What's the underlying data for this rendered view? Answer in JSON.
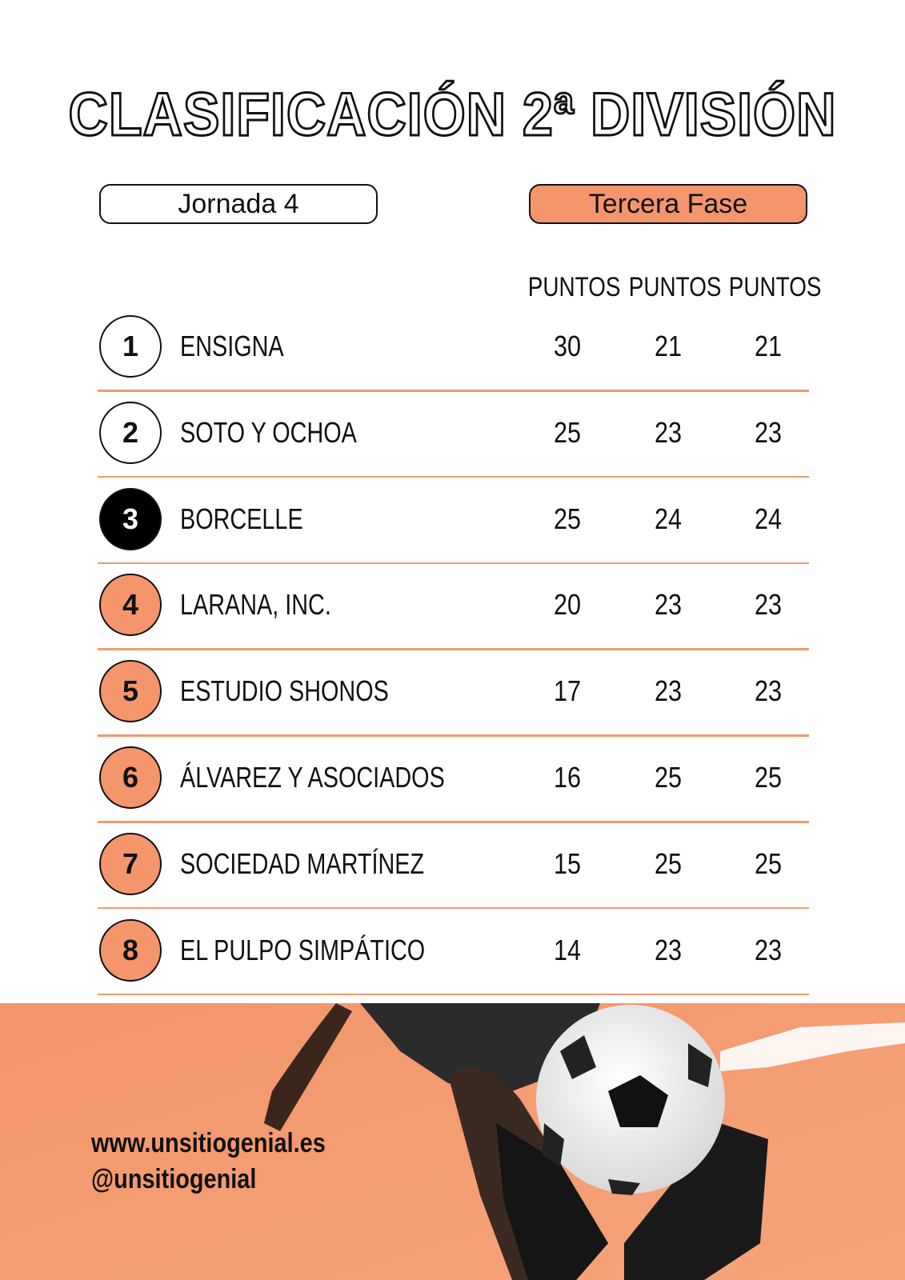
{
  "title": "CLASIFICACIÓN 2ª DIVISIÓN",
  "jornada": "Jornada 4",
  "fase": "Tercera Fase",
  "table": {
    "headers": [
      "PUNTOS",
      "PUNTOS",
      "PUNTOS"
    ],
    "rows": [
      {
        "rank": "1",
        "team": "ENSIGNA",
        "points": [
          "30",
          "21",
          "21"
        ]
      },
      {
        "rank": "2",
        "team": "SOTO Y OCHOA",
        "points": [
          "25",
          "23",
          "23"
        ]
      },
      {
        "rank": "3",
        "team": "BORCELLE",
        "points": [
          "25",
          "24",
          "24"
        ]
      },
      {
        "rank": "4",
        "team": "LARANA, INC.",
        "points": [
          "20",
          "23",
          "23"
        ]
      },
      {
        "rank": "5",
        "team": "ESTUDIO SHONOS",
        "points": [
          "17",
          "23",
          "23"
        ]
      },
      {
        "rank": "6",
        "team": "ÁLVAREZ Y ASOCIADOS",
        "points": [
          "16",
          "25",
          "25"
        ]
      },
      {
        "rank": "7",
        "team": "SOCIEDAD MARTÍNEZ",
        "points": [
          "15",
          "25",
          "25"
        ]
      },
      {
        "rank": "8",
        "team": "EL PULPO SIMPÁTICO",
        "points": [
          "14",
          "23",
          "23"
        ]
      }
    ]
  },
  "footer": {
    "website": "www.unsitiogenial.es",
    "handle": "@unsitiogenial"
  }
}
